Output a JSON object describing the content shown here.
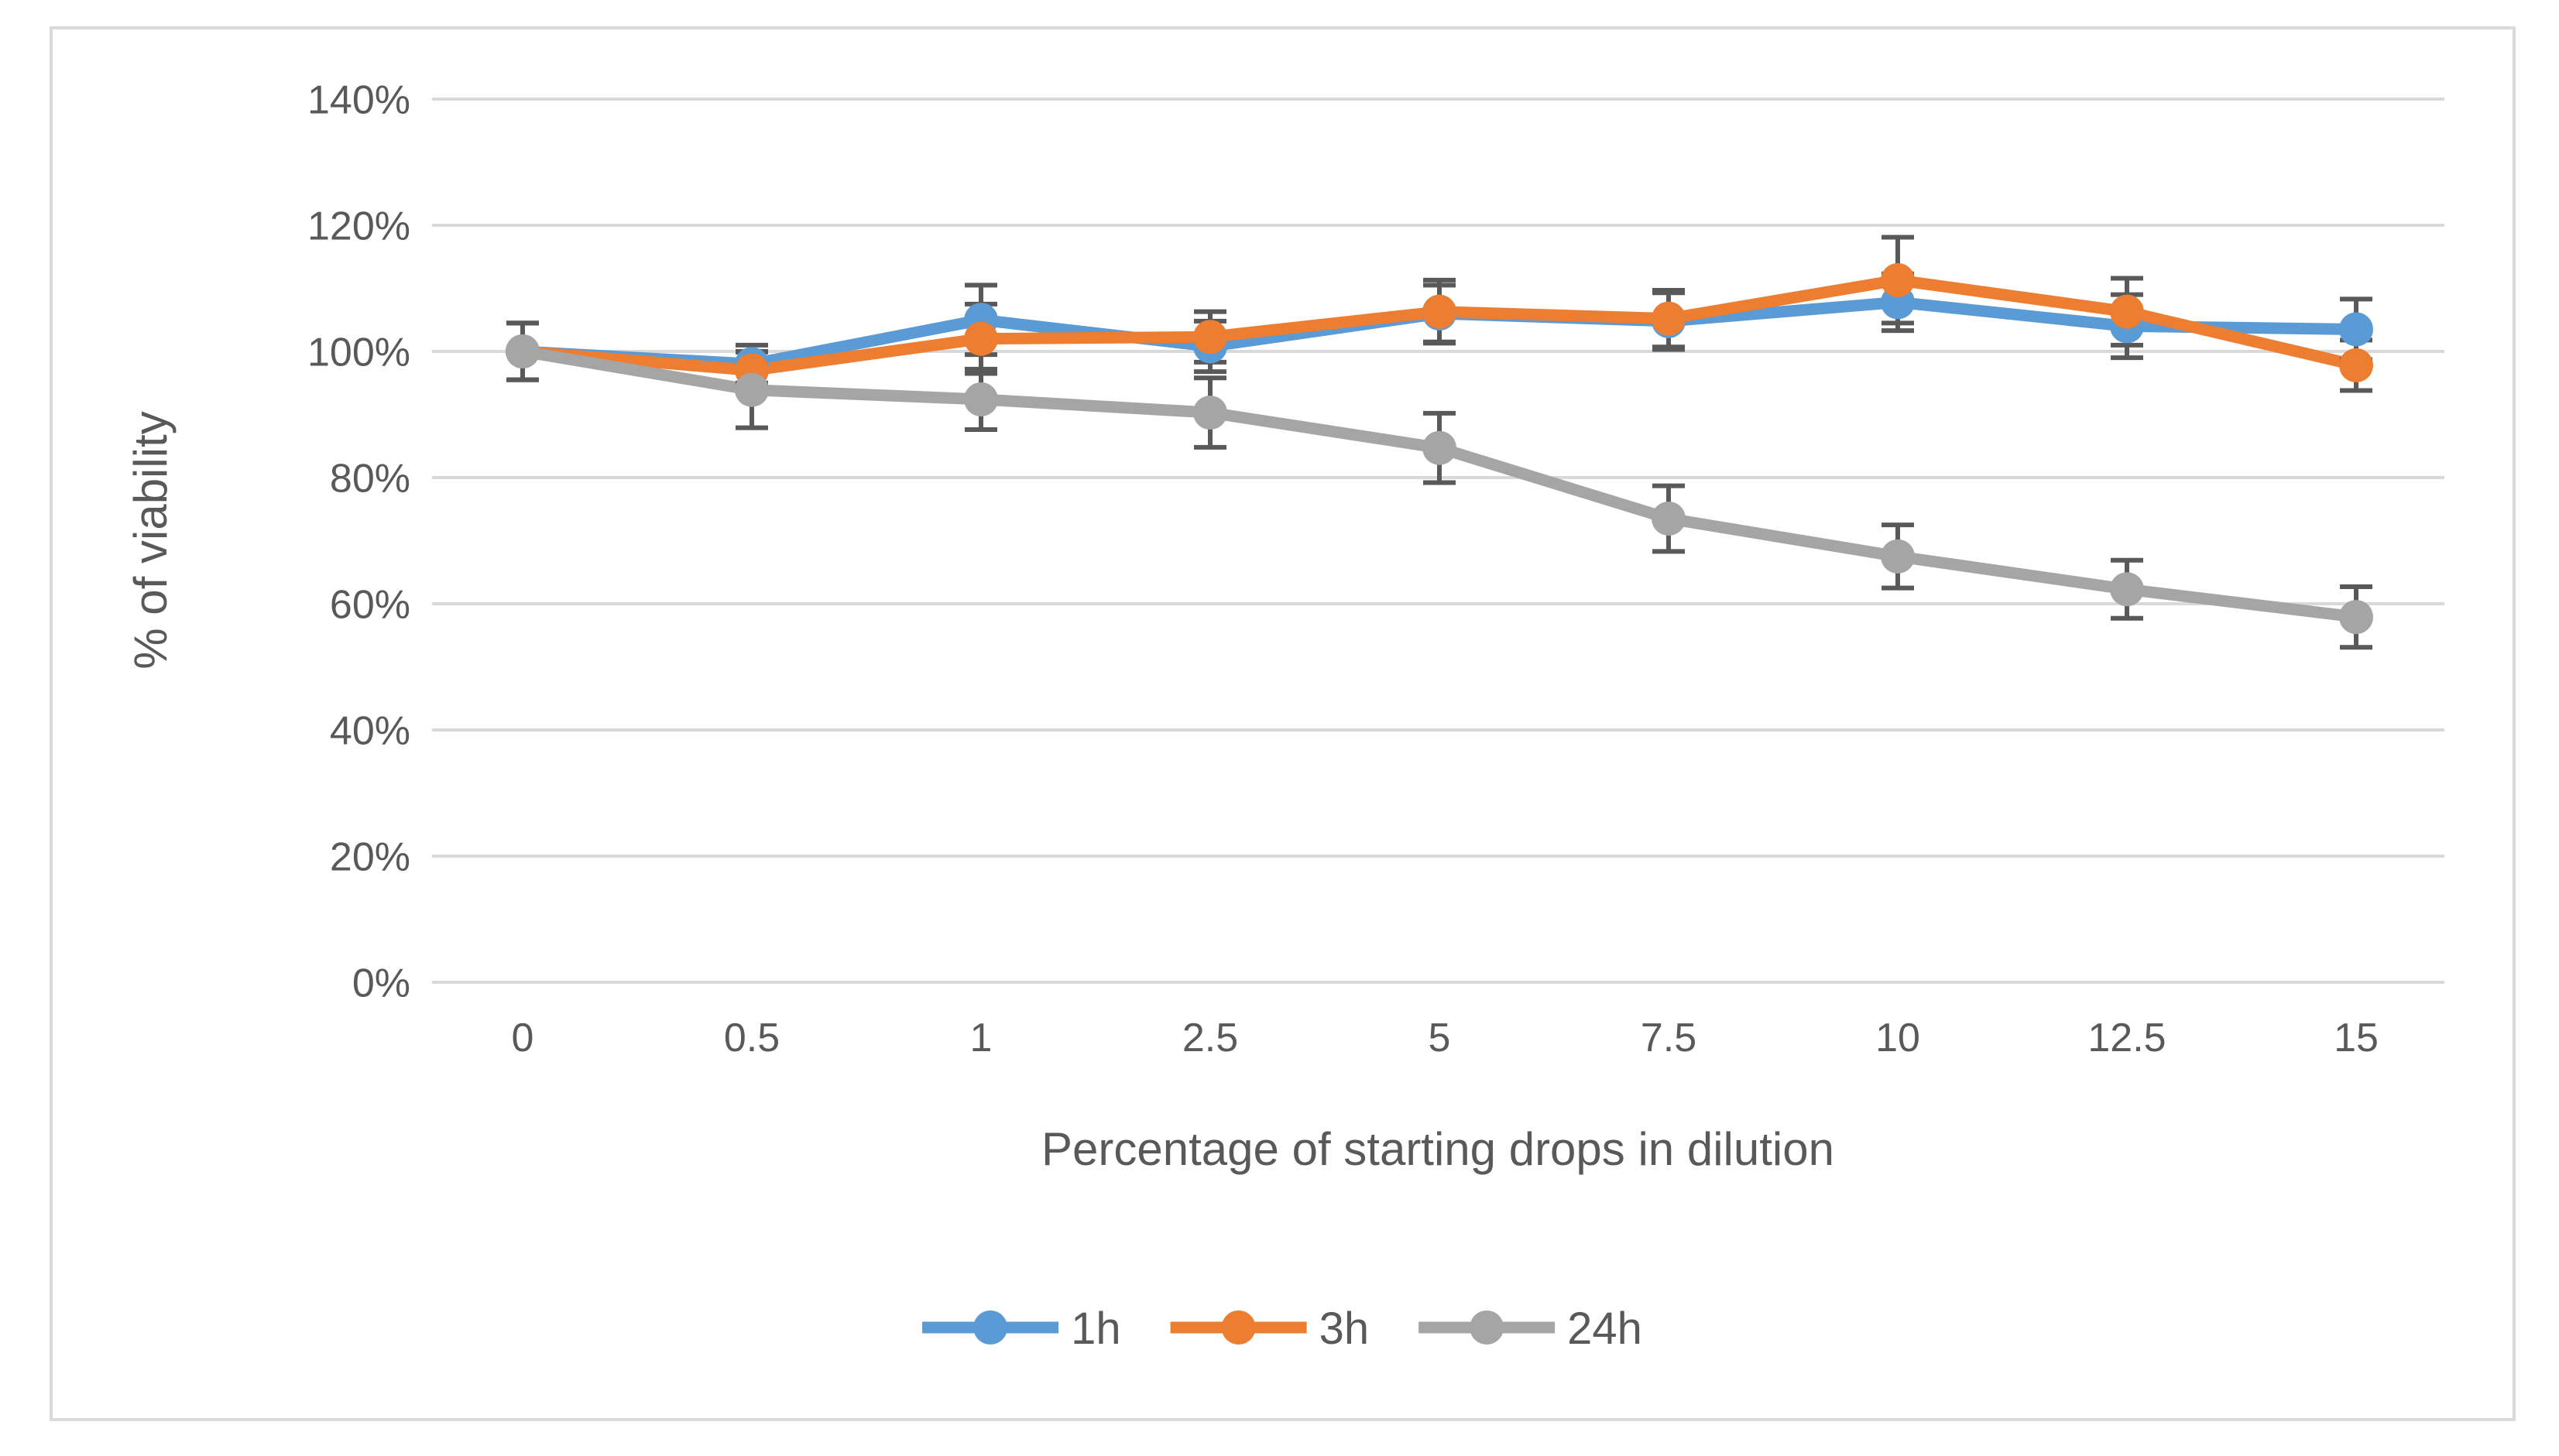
{
  "figure": {
    "background": "#FFFFFF",
    "border_color": "#D9D9D9"
  },
  "chart_data": {
    "type": "line",
    "title": "",
    "xlabel": "Percentage of starting drops in dilution",
    "ylabel": "% of viability",
    "categories": [
      "0",
      "0.5",
      "1",
      "2.5",
      "5",
      "7.5",
      "10",
      "12.5",
      "15"
    ],
    "y_ticks": [
      "0%",
      "20%",
      "40%",
      "60%",
      "80%",
      "100%",
      "120%",
      "140%"
    ],
    "y_tick_values": [
      0,
      20,
      40,
      60,
      80,
      100,
      120,
      140
    ],
    "ylim": [
      0,
      140
    ],
    "grid": "horizontal",
    "gridline_color": "#D9D9D9",
    "text_color": "#595959",
    "error_bar_color": "#595959",
    "legend_position": "bottom",
    "series": [
      {
        "name": "1h",
        "color": "#5B9BD5",
        "values": [
          100,
          98,
          105,
          100.8,
          106,
          104.8,
          107.8,
          104,
          103.5
        ],
        "errors": [
          4.5,
          3,
          5.5,
          4,
          4.5,
          4.5,
          4.5,
          5,
          4.8
        ]
      },
      {
        "name": "3h",
        "color": "#ED7D31",
        "values": [
          100,
          97,
          102,
          102.3,
          106.3,
          105.2,
          111.3,
          106.3,
          97.8
        ],
        "errors": [
          4.5,
          3,
          5.5,
          4,
          5,
          4.5,
          6.8,
          5.3,
          4
        ]
      },
      {
        "name": "24h",
        "color": "#A5A5A5",
        "values": [
          100,
          93.9,
          92.4,
          90.3,
          84.7,
          73.5,
          67.5,
          62.3,
          57.9
        ],
        "errors": [
          4.5,
          6,
          4.8,
          5.5,
          5.5,
          5.2,
          5,
          4.6,
          4.8
        ]
      }
    ]
  }
}
